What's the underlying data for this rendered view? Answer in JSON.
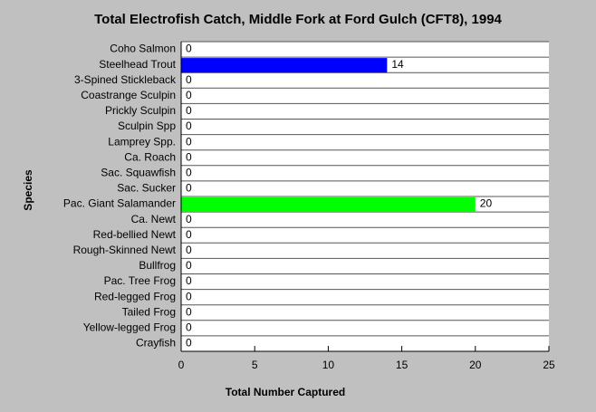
{
  "chart_data": {
    "type": "bar",
    "orientation": "horizontal",
    "title": "Total Electrofish Catch, Middle Fork at Ford Gulch (CFT8), 1994",
    "xlabel": "Total Number Captured",
    "ylabel": "Species",
    "categories": [
      "Coho Salmon",
      "Steelhead Trout",
      "3-Spined Stickleback",
      "Coastrange Sculpin",
      "Prickly Sculpin",
      "Sculpin Spp",
      "Lamprey Spp.",
      "Ca. Roach",
      "Sac. Squawfish",
      "Sac. Sucker",
      "Pac. Giant Salamander",
      "Ca. Newt",
      "Red-bellied Newt",
      "Rough-Skinned Newt",
      "Bullfrog",
      "Pac. Tree Frog",
      "Red-legged Frog",
      "Tailed Frog",
      "Yellow-legged Frog",
      "Crayfish"
    ],
    "values": [
      0,
      14,
      0,
      0,
      0,
      0,
      0,
      0,
      0,
      0,
      20,
      0,
      0,
      0,
      0,
      0,
      0,
      0,
      0,
      0
    ],
    "colors": [
      null,
      "#0000ff",
      null,
      null,
      null,
      null,
      null,
      null,
      null,
      null,
      "#00ff00",
      null,
      null,
      null,
      null,
      null,
      null,
      null,
      null,
      null
    ],
    "xlim": [
      0,
      25
    ],
    "xticks": [
      0,
      5,
      10,
      15,
      20,
      25
    ]
  }
}
